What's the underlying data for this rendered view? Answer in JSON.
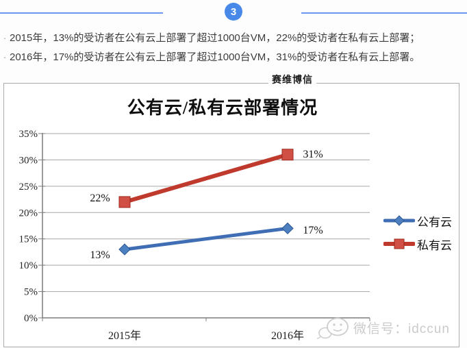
{
  "page": {
    "section_number": "3",
    "accent_color": "#4788e8",
    "bullets": [
      {
        "marker": "·",
        "text": "2015年，13%的受访者在公有云上部署了超过1000台VM，22%的受访者在私有云上部署；"
      },
      {
        "marker": "·",
        "text": "2016年，17%的受访者在公有云上部署了超过1000台VM，31%的受访者在私有云上部署。"
      }
    ]
  },
  "chart": {
    "brand": "赛维博信",
    "watermark": {
      "icon": "wechat-icon",
      "label": "微信号：idccun",
      "color": "#cbcbcb"
    }
  },
  "chart_data": {
    "type": "line",
    "title": "公有云/私有云部署情况",
    "categories": [
      "2015年",
      "2016年"
    ],
    "series": [
      {
        "name": "公有云",
        "marker": "diamond",
        "color": "#3f6eb5",
        "values": [
          13,
          17
        ],
        "labels": [
          "13%",
          "17%"
        ]
      },
      {
        "name": "私有云",
        "marker": "square",
        "color": "#bf3a2d",
        "values": [
          22,
          31
        ],
        "labels": [
          "22%",
          "31%"
        ]
      }
    ],
    "ylim": [
      0,
      35
    ],
    "y_tick_step": 5,
    "y_tick_labels": [
      "0%",
      "5%",
      "10%",
      "15%",
      "20%",
      "25%",
      "30%",
      "35%"
    ],
    "grid": true,
    "legend_position": "right"
  }
}
